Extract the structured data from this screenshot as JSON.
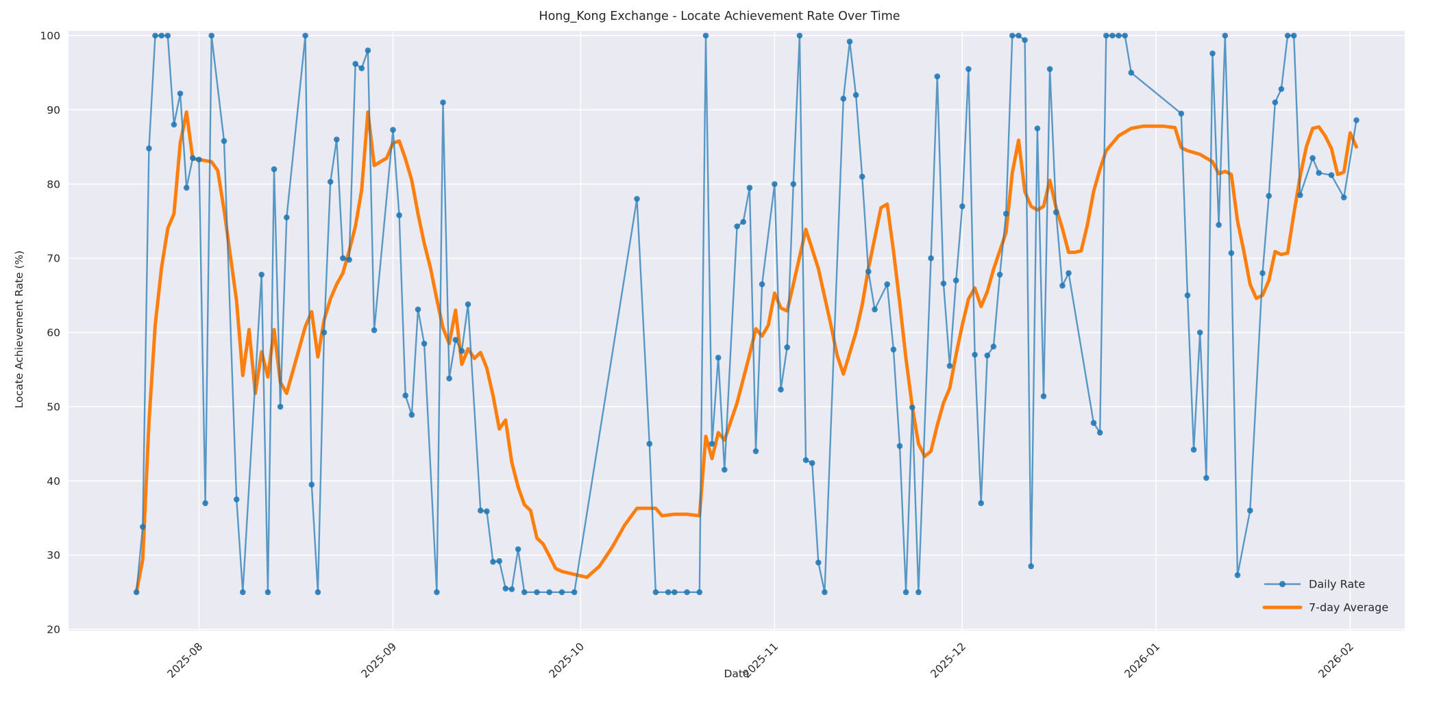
{
  "title": "Hong_Kong Exchange - Locate Achievement Rate Over Time",
  "axes": {
    "x_label": "Date",
    "y_label": "Locate Achievement Rate (%)",
    "y_ticks": [
      20,
      30,
      40,
      50,
      60,
      70,
      80,
      90,
      100
    ],
    "x_ticks": [
      {
        "label": "2025-08",
        "offset": 11
      },
      {
        "label": "2025-09",
        "offset": 42
      },
      {
        "label": "2025-10",
        "offset": 72
      },
      {
        "label": "2025-11",
        "offset": 103
      },
      {
        "label": "2025-12",
        "offset": 133
      },
      {
        "label": "2026-01",
        "offset": 164
      },
      {
        "label": "2026-02",
        "offset": 195
      }
    ]
  },
  "legend": {
    "items": [
      {
        "label": "Daily Rate",
        "style": "line-with-marker"
      },
      {
        "label": "7-day Average",
        "style": "thick-line"
      }
    ],
    "position": "lower right"
  },
  "colors": {
    "panel_background": "#eaeaf2",
    "grid": "#ffffff",
    "daily_line": "rgba(31,119,180,0.72)",
    "daily_marker": "rgba(31,119,180,0.88)",
    "avg_line": "#ff7f0e",
    "text": "#262626"
  },
  "chart_data": {
    "type": "line",
    "title": "Hong_Kong Exchange - Locate Achievement Rate Over Time",
    "xlabel": "Date",
    "ylabel": "Locate Achievement Rate (%)",
    "ylim": [
      20,
      100
    ],
    "grid": true,
    "x_unit": "days since 2025-07-21",
    "x_range_dates": [
      "2025-07-22",
      "2026-02-02"
    ],
    "series": [
      {
        "name": "Daily Rate",
        "points": [
          [
            1,
            25
          ],
          [
            2,
            33.8
          ],
          [
            3,
            84.8
          ],
          [
            4,
            100
          ],
          [
            5,
            100
          ],
          [
            6,
            100
          ],
          [
            7,
            88
          ],
          [
            8,
            92.2
          ],
          [
            9,
            79.5
          ],
          [
            10,
            83.5
          ],
          [
            11,
            83.3
          ],
          [
            12,
            37
          ],
          [
            13,
            100
          ],
          [
            15,
            85.8
          ],
          [
            17,
            37.5
          ],
          [
            18,
            25
          ],
          [
            21,
            67.8
          ],
          [
            22,
            25
          ],
          [
            23,
            82
          ],
          [
            24,
            50
          ],
          [
            25,
            75.5
          ],
          [
            28,
            100
          ],
          [
            29,
            39.5
          ],
          [
            30,
            25
          ],
          [
            31,
            60
          ],
          [
            32,
            80.3
          ],
          [
            33,
            86
          ],
          [
            34,
            70
          ],
          [
            35,
            69.8
          ],
          [
            36,
            96.2
          ],
          [
            37,
            95.6
          ],
          [
            38,
            98
          ],
          [
            39,
            60.3
          ],
          [
            42,
            87.3
          ],
          [
            43,
            75.8
          ],
          [
            44,
            51.5
          ],
          [
            45,
            48.9
          ],
          [
            46,
            63.1
          ],
          [
            47,
            58.5
          ],
          [
            49,
            25
          ],
          [
            50,
            91
          ],
          [
            51,
            53.8
          ],
          [
            52,
            59
          ],
          [
            53,
            57.5
          ],
          [
            54,
            63.8
          ],
          [
            56,
            36
          ],
          [
            57,
            35.9
          ],
          [
            58,
            29.1
          ],
          [
            59,
            29.2
          ],
          [
            60,
            25.5
          ],
          [
            61,
            25.4
          ],
          [
            62,
            30.8
          ],
          [
            63,
            25
          ],
          [
            65,
            25
          ],
          [
            67,
            25
          ],
          [
            69,
            25
          ],
          [
            71,
            25
          ],
          [
            81,
            78
          ],
          [
            83,
            45
          ],
          [
            84,
            25
          ],
          [
            86,
            25
          ],
          [
            87,
            25
          ],
          [
            89,
            25
          ],
          [
            91,
            25
          ],
          [
            92,
            100
          ],
          [
            93,
            45
          ],
          [
            94,
            56.6
          ],
          [
            95,
            41.5
          ],
          [
            97,
            74.3
          ],
          [
            98,
            74.9
          ],
          [
            99,
            79.5
          ],
          [
            100,
            44
          ],
          [
            101,
            66.5
          ],
          [
            103,
            80
          ],
          [
            104,
            52.3
          ],
          [
            105,
            58
          ],
          [
            106,
            80
          ],
          [
            107,
            100
          ],
          [
            108,
            42.8
          ],
          [
            109,
            42.4
          ],
          [
            110,
            29
          ],
          [
            111,
            25
          ],
          [
            114,
            91.5
          ],
          [
            115,
            99.2
          ],
          [
            116,
            92
          ],
          [
            117,
            81
          ],
          [
            118,
            68.2
          ],
          [
            119,
            63.1
          ],
          [
            121,
            66.5
          ],
          [
            122,
            57.7
          ],
          [
            123,
            44.7
          ],
          [
            124,
            25
          ],
          [
            125,
            49.9
          ],
          [
            126,
            25
          ],
          [
            128,
            70
          ],
          [
            129,
            94.5
          ],
          [
            130,
            66.6
          ],
          [
            131,
            55.5
          ],
          [
            132,
            67
          ],
          [
            133,
            77
          ],
          [
            134,
            95.5
          ],
          [
            135,
            57
          ],
          [
            136,
            37
          ],
          [
            137,
            56.9
          ],
          [
            138,
            58.1
          ],
          [
            139,
            67.8
          ],
          [
            140,
            76
          ],
          [
            141,
            100
          ],
          [
            142,
            100
          ],
          [
            143,
            99.4
          ],
          [
            144,
            28.5
          ],
          [
            145,
            87.5
          ],
          [
            146,
            51.4
          ],
          [
            147,
            95.5
          ],
          [
            148,
            76.2
          ],
          [
            149,
            66.3
          ],
          [
            150,
            68
          ],
          [
            154,
            47.8
          ],
          [
            155,
            46.5
          ],
          [
            156,
            100
          ],
          [
            157,
            100
          ],
          [
            158,
            100
          ],
          [
            159,
            100
          ],
          [
            160,
            95
          ],
          [
            168,
            89.5
          ],
          [
            169,
            65
          ],
          [
            170,
            44.2
          ],
          [
            171,
            60
          ],
          [
            172,
            40.4
          ],
          [
            173,
            97.6
          ],
          [
            174,
            74.5
          ],
          [
            175,
            100
          ],
          [
            176,
            70.7
          ],
          [
            177,
            27.3
          ],
          [
            179,
            36
          ],
          [
            181,
            68
          ],
          [
            182,
            78.4
          ],
          [
            183,
            91
          ],
          [
            184,
            92.8
          ],
          [
            185,
            100
          ],
          [
            186,
            100
          ],
          [
            187,
            78.5
          ],
          [
            189,
            83.5
          ],
          [
            190,
            81.5
          ],
          [
            192,
            81.2
          ],
          [
            194,
            78.2
          ],
          [
            196,
            88.6
          ]
        ]
      },
      {
        "name": "7-day Average",
        "points": [
          [
            1,
            25
          ],
          [
            2,
            29.4
          ],
          [
            3,
            47.9
          ],
          [
            4,
            61
          ],
          [
            5,
            68.7
          ],
          [
            6,
            74
          ],
          [
            7,
            76
          ],
          [
            8,
            85.5
          ],
          [
            9,
            89.7
          ],
          [
            10,
            83.4
          ],
          [
            11,
            83.3
          ],
          [
            13,
            83
          ],
          [
            14,
            81.8
          ],
          [
            15,
            76.5
          ],
          [
            17,
            64.3
          ],
          [
            18,
            54.2
          ],
          [
            19,
            60.4
          ],
          [
            20,
            51.8
          ],
          [
            21,
            57.4
          ],
          [
            22,
            54
          ],
          [
            23,
            60.4
          ],
          [
            24,
            53.3
          ],
          [
            25,
            51.8
          ],
          [
            28,
            60.8
          ],
          [
            29,
            62.8
          ],
          [
            30,
            56.7
          ],
          [
            31,
            61.7
          ],
          [
            32,
            64.5
          ],
          [
            33,
            66.5
          ],
          [
            34,
            68
          ],
          [
            35,
            71
          ],
          [
            36,
            74.3
          ],
          [
            37,
            79.2
          ],
          [
            38,
            89.7
          ],
          [
            39,
            82.5
          ],
          [
            41,
            83.5
          ],
          [
            42,
            85.5
          ],
          [
            43,
            85.8
          ],
          [
            44,
            83.4
          ],
          [
            45,
            80.5
          ],
          [
            46,
            76
          ],
          [
            47,
            72
          ],
          [
            48,
            68.7
          ],
          [
            49,
            64.5
          ],
          [
            50,
            60.6
          ],
          [
            51,
            58.5
          ],
          [
            52,
            63
          ],
          [
            53,
            55.7
          ],
          [
            54,
            57.8
          ],
          [
            55,
            56.5
          ],
          [
            56,
            57.3
          ],
          [
            57,
            55.2
          ],
          [
            58,
            51.5
          ],
          [
            59,
            47
          ],
          [
            60,
            48.2
          ],
          [
            61,
            42.5
          ],
          [
            62,
            39.2
          ],
          [
            63,
            36.8
          ],
          [
            64,
            36
          ],
          [
            65,
            32.3
          ],
          [
            66,
            31.5
          ],
          [
            67,
            29.9
          ],
          [
            68,
            28.2
          ],
          [
            69,
            27.8
          ],
          [
            71,
            27.4
          ],
          [
            73,
            27
          ],
          [
            75,
            28.5
          ],
          [
            77,
            31
          ],
          [
            79,
            34
          ],
          [
            81,
            36.3
          ],
          [
            84,
            36.3
          ],
          [
            85,
            35.3
          ],
          [
            87,
            35.5
          ],
          [
            89,
            35.5
          ],
          [
            91,
            35.3
          ],
          [
            92,
            46
          ],
          [
            93,
            43
          ],
          [
            94,
            46.5
          ],
          [
            95,
            45.5
          ],
          [
            97,
            50.5
          ],
          [
            99,
            57
          ],
          [
            100,
            60.5
          ],
          [
            101,
            59.5
          ],
          [
            102,
            61
          ],
          [
            103,
            65.3
          ],
          [
            104,
            63.3
          ],
          [
            105,
            62.9
          ],
          [
            106,
            66.5
          ],
          [
            108,
            73.9
          ],
          [
            110,
            68.6
          ],
          [
            112,
            61
          ],
          [
            113,
            56.9
          ],
          [
            114,
            54.4
          ],
          [
            115,
            57.2
          ],
          [
            116,
            60
          ],
          [
            117,
            63.7
          ],
          [
            118,
            68.6
          ],
          [
            119,
            72.7
          ],
          [
            120,
            76.8
          ],
          [
            121,
            77.3
          ],
          [
            122,
            71
          ],
          [
            123,
            64
          ],
          [
            124,
            56.5
          ],
          [
            125,
            50
          ],
          [
            126,
            45
          ],
          [
            127,
            43.3
          ],
          [
            128,
            44
          ],
          [
            129,
            47.5
          ],
          [
            130,
            50.5
          ],
          [
            131,
            52.5
          ],
          [
            132,
            57
          ],
          [
            133,
            61
          ],
          [
            134,
            64.5
          ],
          [
            135,
            66
          ],
          [
            136,
            63.5
          ],
          [
            137,
            65.5
          ],
          [
            138,
            68.5
          ],
          [
            139,
            71
          ],
          [
            140,
            73.5
          ],
          [
            141,
            81.5
          ],
          [
            142,
            85.9
          ],
          [
            143,
            79
          ],
          [
            144,
            77
          ],
          [
            145,
            76.5
          ],
          [
            146,
            77
          ],
          [
            147,
            80.5
          ],
          [
            148,
            76.8
          ],
          [
            149,
            74
          ],
          [
            150,
            70.8
          ],
          [
            151,
            70.8
          ],
          [
            152,
            71
          ],
          [
            153,
            74.5
          ],
          [
            154,
            79
          ],
          [
            155,
            82
          ],
          [
            156,
            84.5
          ],
          [
            158,
            86.5
          ],
          [
            160,
            87.5
          ],
          [
            162,
            87.8
          ],
          [
            165,
            87.8
          ],
          [
            167,
            87.6
          ],
          [
            168,
            84.9
          ],
          [
            169,
            84.5
          ],
          [
            171,
            84
          ],
          [
            173,
            83
          ],
          [
            174,
            81.4
          ],
          [
            175,
            81.7
          ],
          [
            176,
            81.3
          ],
          [
            177,
            75
          ],
          [
            178,
            71
          ],
          [
            179,
            66.5
          ],
          [
            180,
            64.6
          ],
          [
            181,
            65
          ],
          [
            182,
            67
          ],
          [
            183,
            70.9
          ],
          [
            184,
            70.5
          ],
          [
            185,
            70.7
          ],
          [
            186,
            76
          ],
          [
            187,
            81
          ],
          [
            188,
            85
          ],
          [
            189,
            87.5
          ],
          [
            190,
            87.7
          ],
          [
            191,
            86.5
          ],
          [
            192,
            84.8
          ],
          [
            193,
            81.3
          ],
          [
            194,
            81.6
          ],
          [
            195,
            86.9
          ],
          [
            196,
            85
          ]
        ]
      }
    ]
  }
}
